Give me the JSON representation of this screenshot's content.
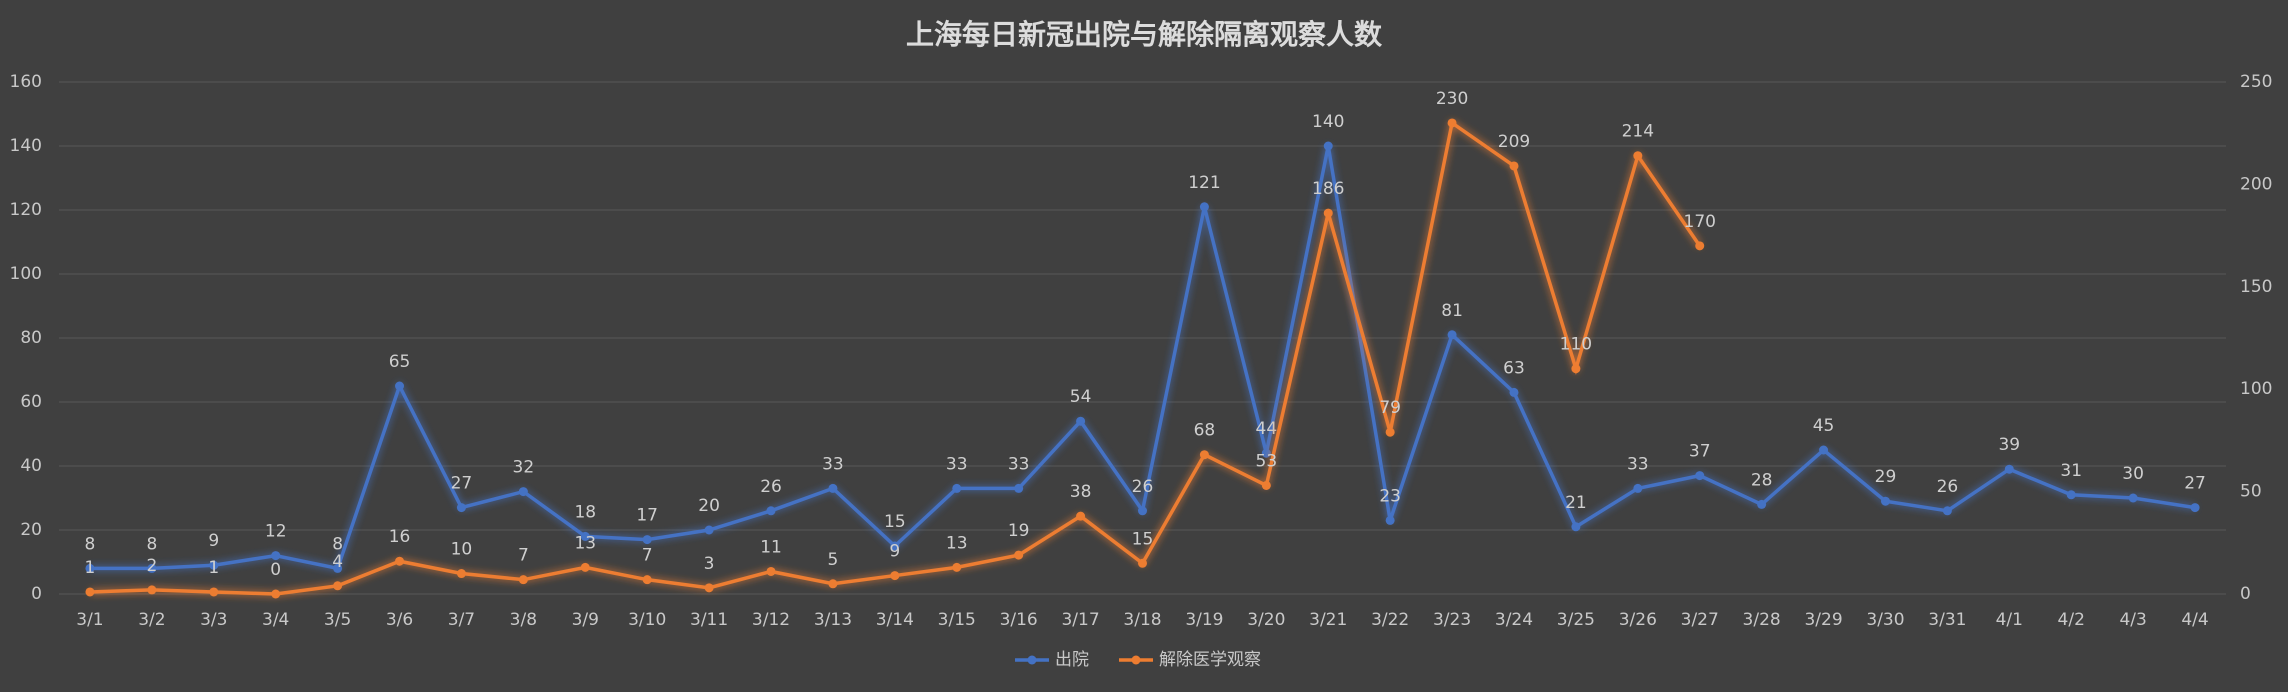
{
  "chart_data": {
    "type": "line",
    "title": "上海每日新冠出院与解除隔离观察人数",
    "categories": [
      "3/1",
      "3/2",
      "3/3",
      "3/4",
      "3/5",
      "3/6",
      "3/7",
      "3/8",
      "3/9",
      "3/10",
      "3/11",
      "3/12",
      "3/13",
      "3/14",
      "3/15",
      "3/16",
      "3/17",
      "3/18",
      "3/19",
      "3/20",
      "3/21",
      "3/22",
      "3/23",
      "3/24",
      "3/25",
      "3/26",
      "3/27",
      "3/28",
      "3/29",
      "3/30",
      "3/31",
      "4/1",
      "4/2",
      "4/3",
      "4/4"
    ],
    "series": [
      {
        "name": "出院",
        "color": "#4472c4",
        "axis": "y",
        "values": [
          8,
          8,
          9,
          12,
          8,
          65,
          27,
          32,
          18,
          17,
          20,
          26,
          33,
          15,
          33,
          33,
          54,
          26,
          121,
          44,
          140,
          23,
          81,
          63,
          21,
          33,
          37,
          28,
          45,
          29,
          26,
          39,
          31,
          30,
          27
        ]
      },
      {
        "name": "解除医学观察",
        "color": "#ed7d31",
        "axis": "y2",
        "values": [
          1,
          2,
          1,
          0,
          4,
          16,
          10,
          7,
          13,
          7,
          3,
          11,
          5,
          9,
          13,
          19,
          38,
          15,
          68,
          53,
          186,
          79,
          230,
          209,
          110,
          214,
          170,
          null,
          null,
          null,
          null,
          null,
          null,
          null,
          null
        ]
      }
    ],
    "ylim": [
      0,
      160
    ],
    "yticks": [
      0,
      20,
      40,
      60,
      80,
      100,
      120,
      140,
      160
    ],
    "y2lim": [
      0,
      250
    ],
    "y2ticks": [
      0,
      50,
      100,
      150,
      200,
      250
    ],
    "grid": true,
    "legend": "bottom"
  }
}
